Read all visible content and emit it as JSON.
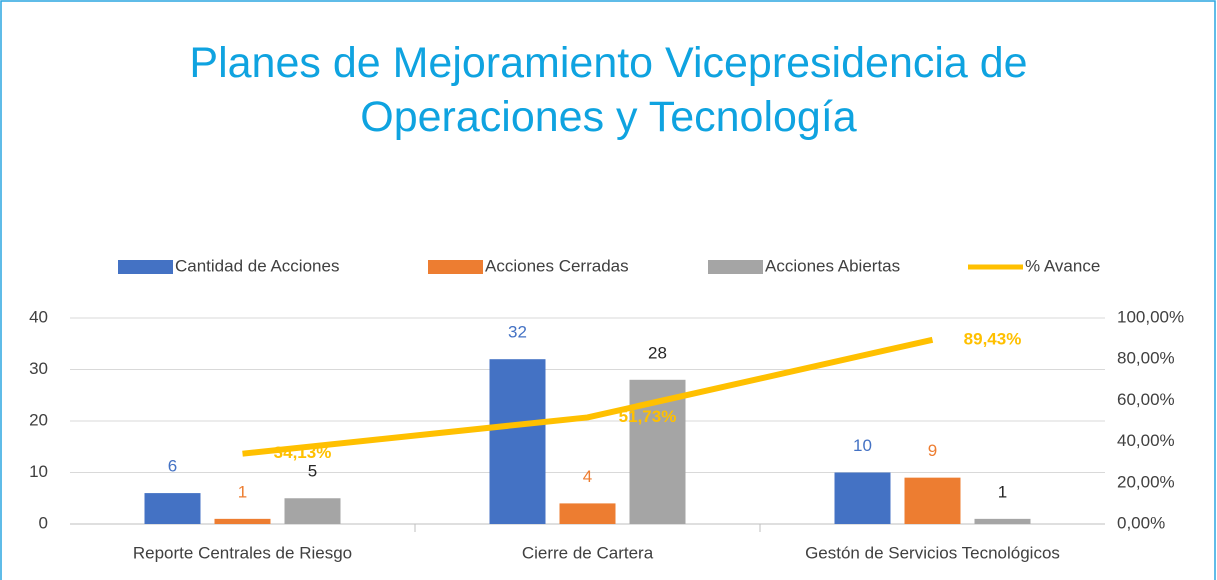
{
  "chart_data": {
    "type": "bar",
    "title": "Planes de Mejoramiento Vicepresidencia de Operaciones y Tecnología",
    "categories": [
      "Reporte Centrales de Riesgo",
      "Cierre de Cartera",
      "Gestón de Servicios Tecnológicos"
    ],
    "series": [
      {
        "name": "Cantidad de Acciones",
        "color": "#4472c4",
        "values": [
          6,
          32,
          10
        ]
      },
      {
        "name": "Acciones Cerradas",
        "color": "#ed7d31",
        "values": [
          1,
          4,
          9
        ]
      },
      {
        "name": "Acciones Abiertas",
        "color": "#a5a5a5",
        "values": [
          5,
          28,
          1
        ]
      },
      {
        "name": "% Avance",
        "color": "#ffc000",
        "type": "line",
        "axis": "y2",
        "values": [
          34.13,
          51.73,
          89.43
        ],
        "value_labels": [
          "34,13%",
          "51,73%",
          "89,43%"
        ]
      }
    ],
    "ylim": [
      0,
      40
    ],
    "yticks": [
      0,
      10,
      20,
      30,
      40
    ],
    "y2lim": [
      0,
      100
    ],
    "y2ticks": [
      {
        "value": 0,
        "label": "0,00%"
      },
      {
        "value": 20,
        "label": "20,00%"
      },
      {
        "value": 40,
        "label": "40,00%"
      },
      {
        "value": 60,
        "label": "60,00%"
      },
      {
        "value": 80,
        "label": "80,00%"
      },
      {
        "value": 100,
        "label": "100,00%"
      }
    ],
    "grid": true,
    "legend": "top"
  }
}
